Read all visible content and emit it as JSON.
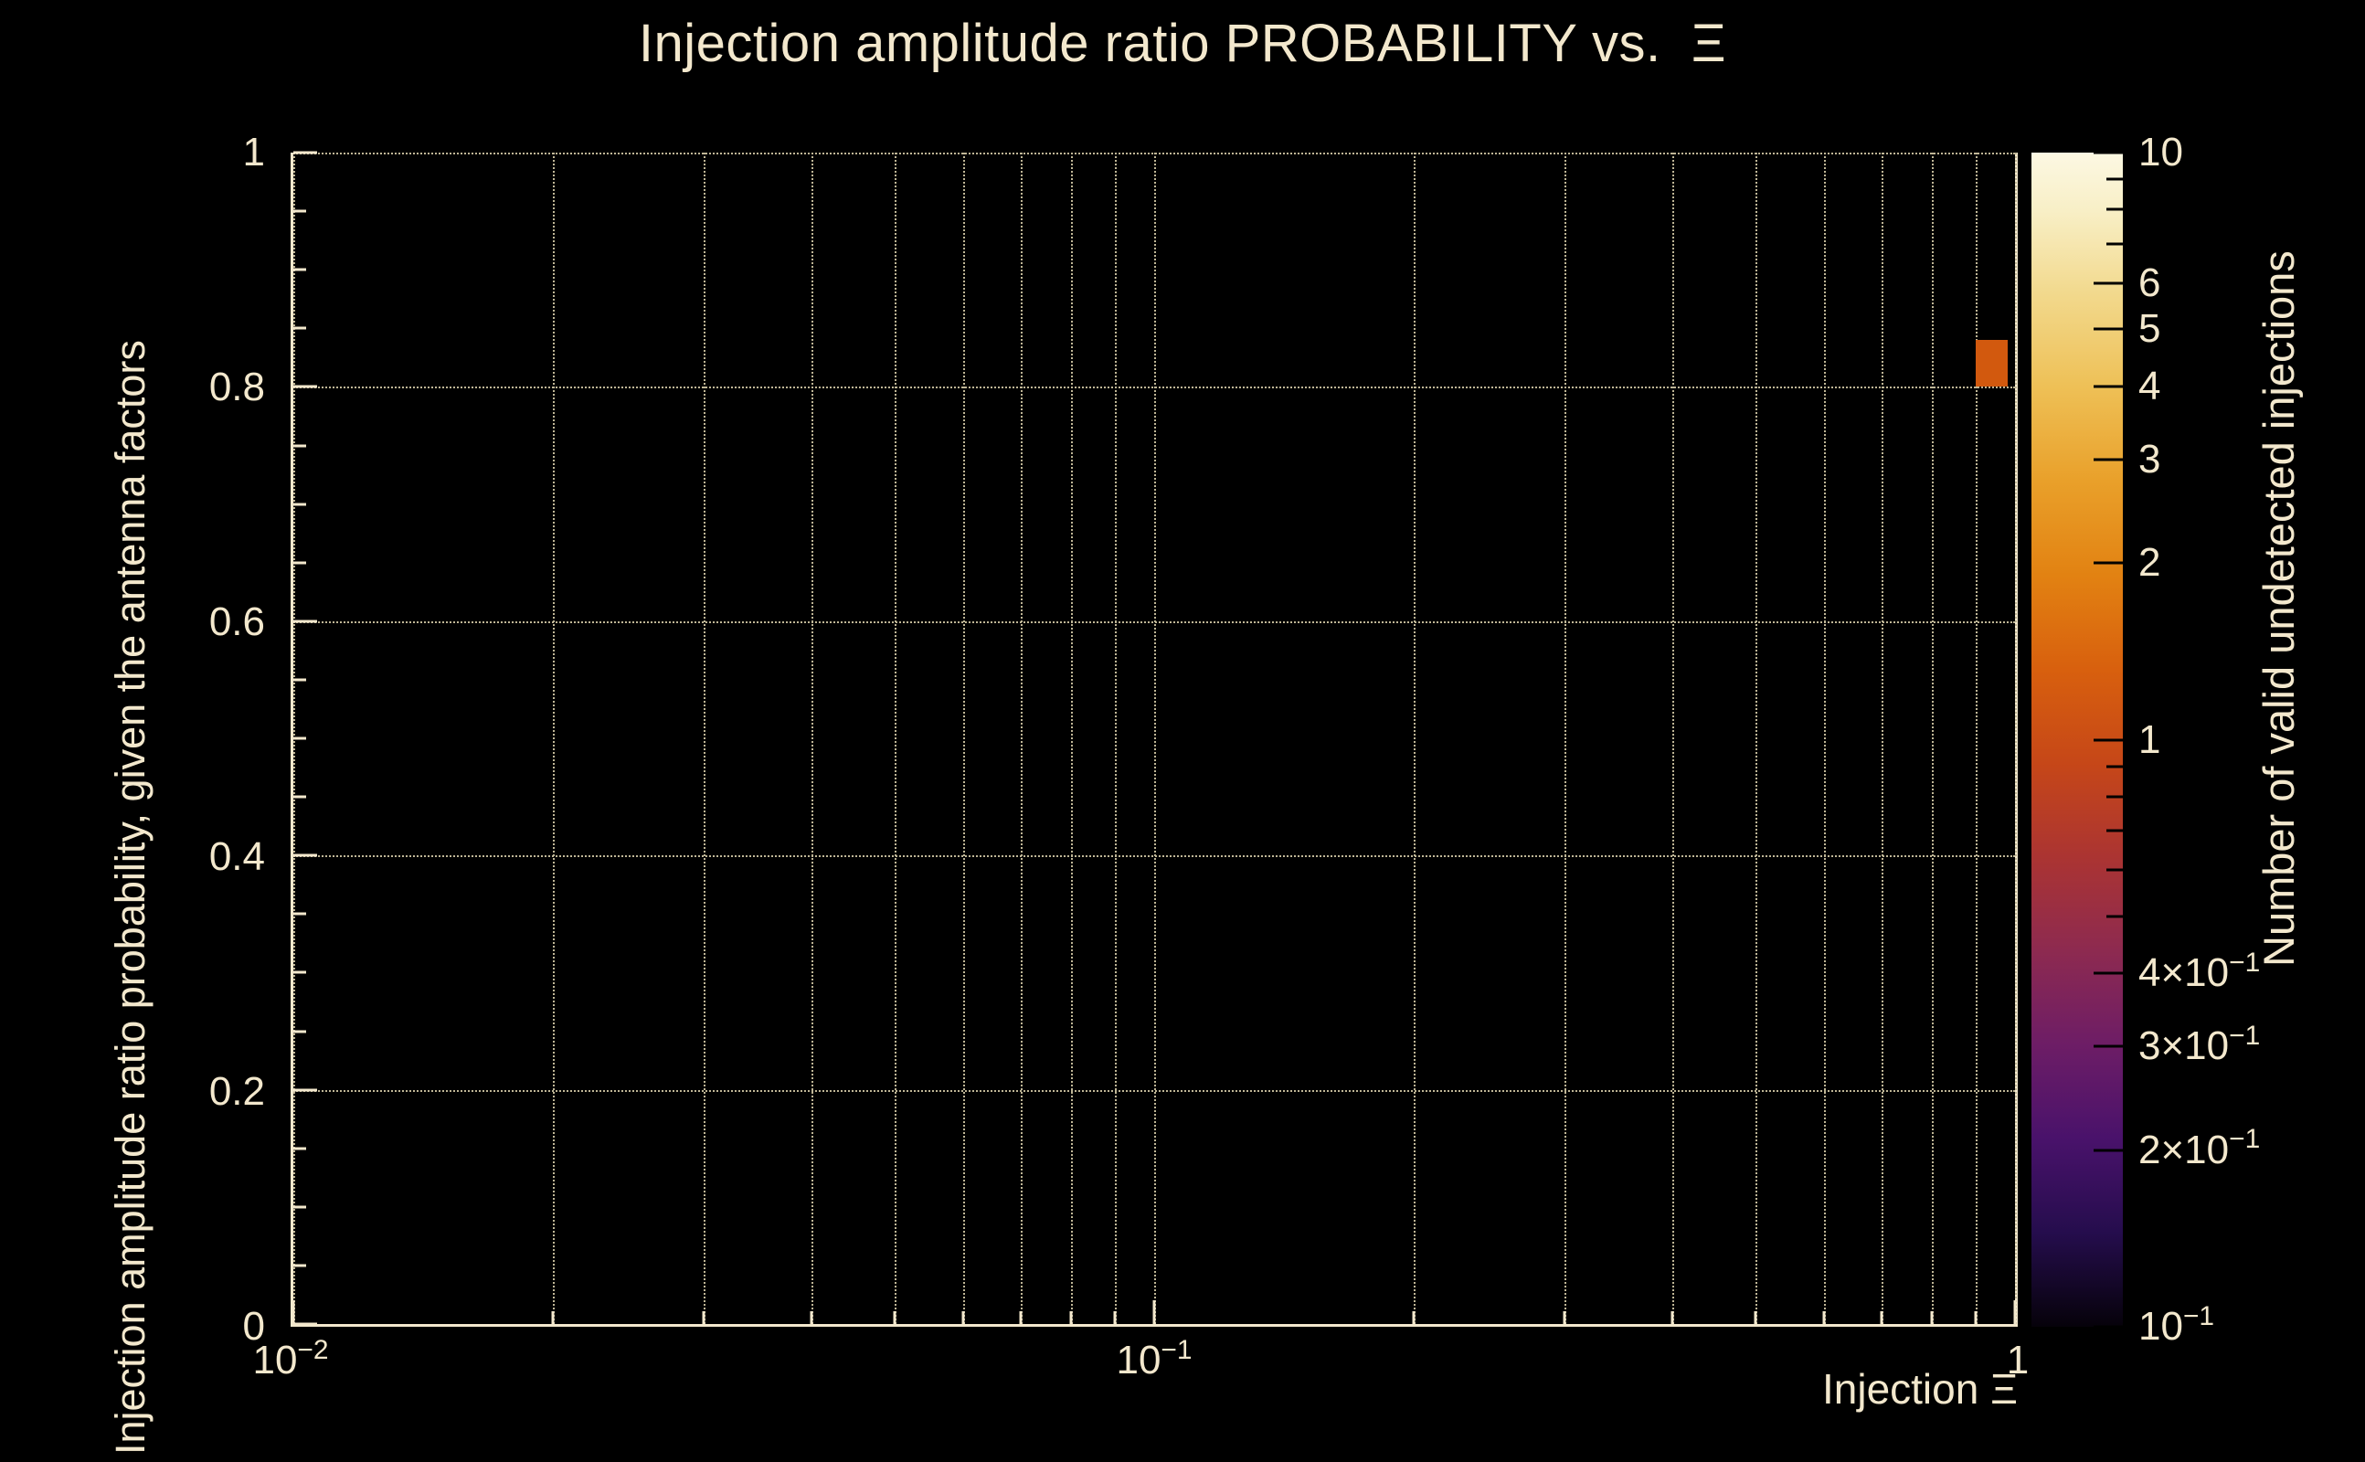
{
  "chart_data": {
    "type": "heatmap",
    "title": "Injection amplitude ratio PROBABILITY vs.  Ξ",
    "xlabel": "Injection Ξ",
    "ylabel": "Injection amplitude ratio probability, given the antenna factors",
    "colorbar_label": "Number of valid undetected injections",
    "x_scale": "log",
    "x_range": [
      0.01,
      1
    ],
    "y_range": [
      0,
      1
    ],
    "grid": true,
    "x_major_ticks": [
      {
        "v": 0.01,
        "label": "10",
        "sup": "−2"
      },
      {
        "v": 0.1,
        "label": "10",
        "sup": "−1"
      },
      {
        "v": 1,
        "label": "1"
      }
    ],
    "x_minor_ticks": [
      0.02,
      0.03,
      0.04,
      0.05,
      0.06,
      0.07,
      0.08,
      0.09,
      0.2,
      0.3,
      0.4,
      0.5,
      0.6,
      0.7,
      0.8,
      0.9
    ],
    "y_major_ticks": [
      {
        "v": 0,
        "label": "0"
      },
      {
        "v": 0.2,
        "label": "0.2"
      },
      {
        "v": 0.4,
        "label": "0.4"
      },
      {
        "v": 0.6,
        "label": "0.6"
      },
      {
        "v": 0.8,
        "label": "0.8"
      },
      {
        "v": 1,
        "label": "1"
      }
    ],
    "y_minor_ticks": [
      0.05,
      0.1,
      0.15,
      0.25,
      0.3,
      0.35,
      0.45,
      0.5,
      0.55,
      0.65,
      0.7,
      0.75,
      0.85,
      0.9,
      0.95
    ],
    "bins": [
      {
        "x_min": 0.9,
        "x_max": 0.98,
        "y_min": 0.8,
        "y_max": 0.84,
        "value": 1,
        "color": "#d2590e"
      }
    ],
    "colorbar": {
      "scale": "log",
      "range": [
        0.1,
        10
      ],
      "major_ticks": [
        {
          "v": 10,
          "label": "10"
        },
        {
          "v": 6,
          "label": "6"
        },
        {
          "v": 5,
          "label": "5"
        },
        {
          "v": 4,
          "label": "4"
        },
        {
          "v": 3,
          "label": "3"
        },
        {
          "v": 2,
          "label": "2"
        },
        {
          "v": 1,
          "label": "1"
        },
        {
          "v": 0.4,
          "label": "4×10",
          "sup": "−1"
        },
        {
          "v": 0.3,
          "label": "3×10",
          "sup": "−1"
        },
        {
          "v": 0.2,
          "label": "2×10",
          "sup": "−1"
        },
        {
          "v": 0.1,
          "label": "10",
          "sup": "−1"
        }
      ],
      "minor_ticks": [
        9,
        8,
        7,
        0.9,
        0.8,
        0.7,
        0.6,
        0.5
      ],
      "gradient_stops": [
        {
          "pos": 0,
          "color": "#fcf8e3"
        },
        {
          "pos": 5,
          "color": "#f8efc6"
        },
        {
          "pos": 12,
          "color": "#f2d98d"
        },
        {
          "pos": 20,
          "color": "#eec056"
        },
        {
          "pos": 28,
          "color": "#e9a02a"
        },
        {
          "pos": 36,
          "color": "#e28212"
        },
        {
          "pos": 44,
          "color": "#d8600e"
        },
        {
          "pos": 52,
          "color": "#c64718"
        },
        {
          "pos": 60,
          "color": "#ab3432"
        },
        {
          "pos": 68,
          "color": "#8d2a50"
        },
        {
          "pos": 76,
          "color": "#6d1d66"
        },
        {
          "pos": 84,
          "color": "#49126b"
        },
        {
          "pos": 92,
          "color": "#250d4d"
        },
        {
          "pos": 100,
          "color": "#06020a"
        }
      ]
    },
    "colors": {
      "background": "#000000",
      "foreground": "#f3e8cd",
      "grid": "#bfb696"
    }
  }
}
